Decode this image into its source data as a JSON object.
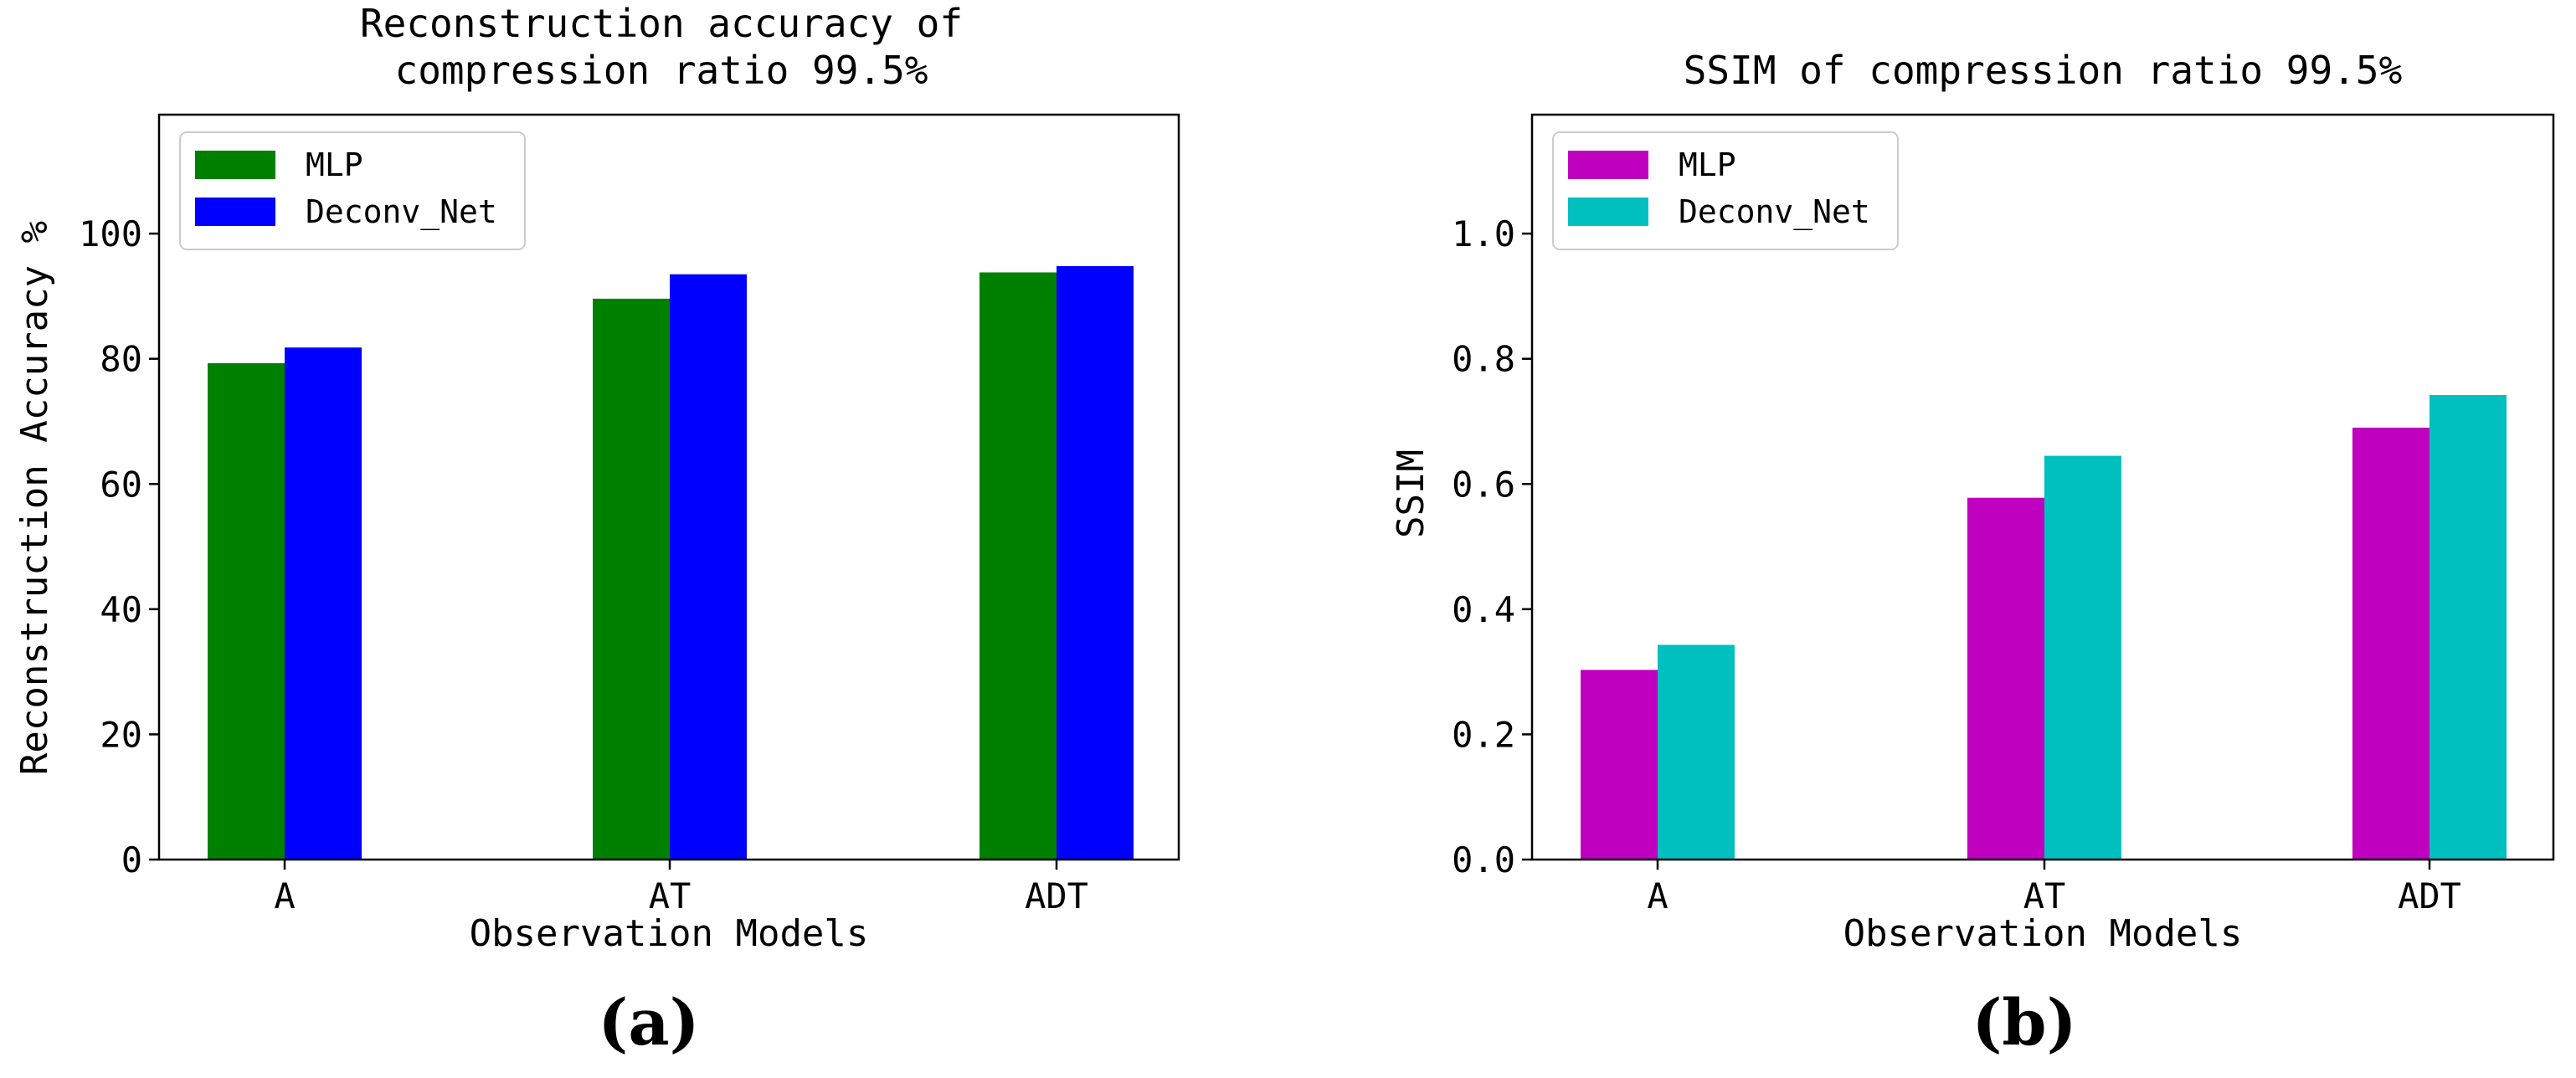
{
  "chart_data": [
    {
      "type": "bar",
      "panel_label": "(a)",
      "title": [
        "Reconstruction accuracy of",
        "compression ratio 99.5%"
      ],
      "xlabel": "Observation Models",
      "ylabel": "Reconstruction Accuracy %",
      "categories": [
        "A",
        "AT",
        "ADT"
      ],
      "series": [
        {
          "name": "MLP",
          "values": [
            79.3,
            89.6,
            93.8
          ],
          "color": "#008000"
        },
        {
          "name": "Deconv_Net",
          "values": [
            81.8,
            93.5,
            94.8
          ],
          "color": "#0000ff"
        }
      ],
      "ylim": [
        0,
        119
      ],
      "yticks": [
        0,
        20,
        40,
        60,
        80,
        100
      ],
      "ytick_labels": [
        "0",
        "20",
        "40",
        "60",
        "80",
        "100"
      ],
      "grid": false,
      "legend": "upper-left"
    },
    {
      "type": "bar",
      "panel_label": "(b)",
      "title": [
        "SSIM of compression ratio 99.5%"
      ],
      "xlabel": "Observation Models",
      "ylabel": "SSIM",
      "categories": [
        "A",
        "AT",
        "ADT"
      ],
      "series": [
        {
          "name": "MLP",
          "values": [
            0.303,
            0.578,
            0.69
          ],
          "color": "#bf00bf"
        },
        {
          "name": "Deconv_Net",
          "values": [
            0.343,
            0.645,
            0.742
          ],
          "color": "#00bfbf"
        }
      ],
      "ylim": [
        0,
        1.19
      ],
      "yticks": [
        0,
        0.2,
        0.4,
        0.6,
        0.8,
        1.0
      ],
      "ytick_labels": [
        "0.0",
        "0.2",
        "0.4",
        "0.6",
        "0.8",
        "1.0"
      ],
      "grid": false,
      "legend": "upper-left"
    }
  ]
}
